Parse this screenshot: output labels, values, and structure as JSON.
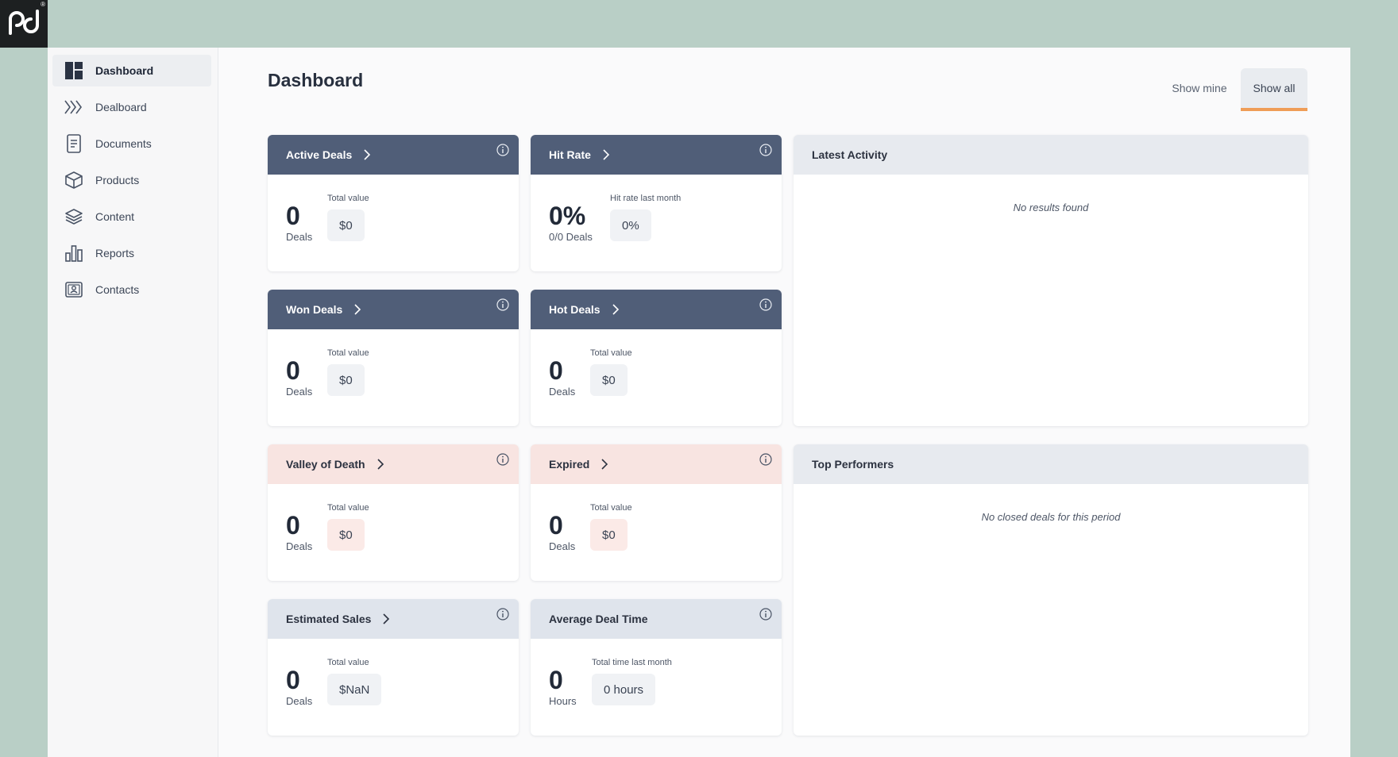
{
  "sidebar": {
    "items": [
      {
        "label": "Dashboard",
        "icon": "dashboard-icon",
        "active": true
      },
      {
        "label": "Dealboard",
        "icon": "chevrons-right-icon"
      },
      {
        "label": "Documents",
        "icon": "document-icon"
      },
      {
        "label": "Products",
        "icon": "box-icon"
      },
      {
        "label": "Content",
        "icon": "layers-icon"
      },
      {
        "label": "Reports",
        "icon": "bar-chart-icon"
      },
      {
        "label": "Contacts",
        "icon": "contact-card-icon"
      }
    ]
  },
  "header": {
    "title": "Dashboard",
    "show_mine": "Show mine",
    "show_all": "Show all"
  },
  "cards": [
    {
      "title": "Active Deals",
      "value": "0",
      "unit": "Deals",
      "sub_label": "Total value",
      "sub_value": "$0",
      "style": "dark"
    },
    {
      "title": "Hit Rate",
      "value": "0%",
      "unit": "0/0 Deals",
      "sub_label": "Hit rate last month",
      "sub_value": "0%",
      "style": "dark"
    },
    {
      "title": "Won Deals",
      "value": "0",
      "unit": "Deals",
      "sub_label": "Total value",
      "sub_value": "$0",
      "style": "dark"
    },
    {
      "title": "Hot Deals",
      "value": "0",
      "unit": "Deals",
      "sub_label": "Total value",
      "sub_value": "$0",
      "style": "dark"
    },
    {
      "title": "Valley of Death",
      "value": "0",
      "unit": "Deals",
      "sub_label": "Total value",
      "sub_value": "$0",
      "style": "pink"
    },
    {
      "title": "Expired",
      "value": "0",
      "unit": "Deals",
      "sub_label": "Total value",
      "sub_value": "$0",
      "style": "pink"
    },
    {
      "title": "Estimated Sales",
      "value": "0",
      "unit": "Deals",
      "sub_label": "Total value",
      "sub_value": "$NaN",
      "style": "light"
    },
    {
      "title": "Average Deal Time",
      "value": "0",
      "unit": "Hours",
      "sub_label": "Total time last month",
      "sub_value": "0 hours",
      "style": "light"
    }
  ],
  "panels": {
    "latest_activity": {
      "title": "Latest Activity",
      "empty": "No results found"
    },
    "top_performers": {
      "title": "Top Performers",
      "empty": "No closed deals for this period"
    }
  },
  "colors": {
    "accent_underline": "#ef9d57",
    "card_header_dark": "#505e78",
    "card_header_pink": "#f8e4e1",
    "card_header_light": "#dfe4ec"
  }
}
